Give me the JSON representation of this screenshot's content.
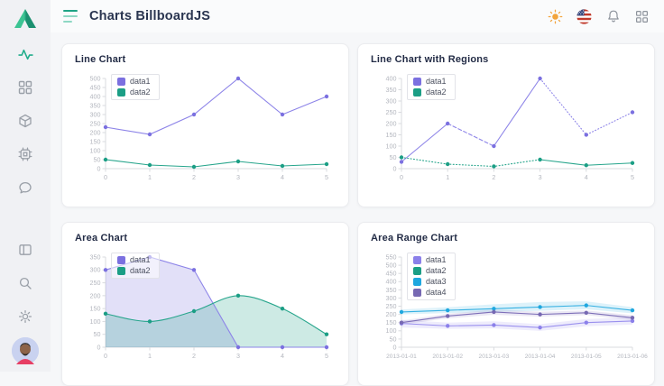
{
  "header": {
    "title": "Charts BillboardJS",
    "icons": [
      "menu-hamburger-icon",
      "theme-sun-icon",
      "language-flag-us-icon",
      "notifications-bell-icon",
      "apps-grid-icon"
    ]
  },
  "sidebar": {
    "logo": "triangle-logo",
    "nav_icons": [
      "activity-icon",
      "grid-icon",
      "cube-icon",
      "cpu-icon",
      "chat-icon"
    ],
    "bottom_icons": [
      "layout-icon",
      "search-icon",
      "settings-gear-icon"
    ],
    "avatar": "user-avatar"
  },
  "colors": {
    "accent_teal": "#22ad8b",
    "series_purple": "#7b70e0",
    "series_green": "#1b9e85",
    "series_blue": "#1ea7df",
    "series_dark_purple": "#7668b2",
    "sun_yellow": "#f2a43c",
    "icon_gray": "#9aa0a8",
    "title_navy": "#2a3550"
  },
  "chart_data": [
    {
      "type": "line",
      "title": "Line Chart",
      "x": [
        0,
        1,
        2,
        3,
        4,
        5
      ],
      "ylim": [
        0,
        500
      ],
      "ytick_step": 50,
      "legend_position": "inset-top-left",
      "grid": false,
      "series": [
        {
          "name": "data1",
          "color": "#7b70e0",
          "line_color": "#8d84e8",
          "type": "line",
          "values": [
            230,
            190,
            300,
            500,
            300,
            400
          ]
        },
        {
          "name": "data2",
          "color": "#1b9e85",
          "line_color": "#27a58c",
          "type": "line",
          "values": [
            50,
            20,
            10,
            40,
            15,
            25
          ]
        }
      ]
    },
    {
      "type": "line",
      "title": "Line Chart with Regions",
      "x": [
        0,
        1,
        2,
        3,
        4,
        5
      ],
      "ylim": [
        0,
        400
      ],
      "ytick_step": 50,
      "legend_position": "inset-top-left",
      "grid": false,
      "series": [
        {
          "name": "data1",
          "color": "#7b70e0",
          "line_color": "#8d84e8",
          "type": "line",
          "values": [
            30,
            200,
            100,
            400,
            150,
            250
          ],
          "segments": [
            {
              "from": 0,
              "to": 1,
              "style": "solid"
            },
            {
              "from": 1,
              "to": 2,
              "style": "dashed"
            },
            {
              "from": 2,
              "to": 3,
              "style": "solid"
            },
            {
              "from": 3,
              "to": 5,
              "style": "dotted"
            }
          ]
        },
        {
          "name": "data2",
          "color": "#1b9e85",
          "line_color": "#27a58c",
          "type": "line",
          "values": [
            50,
            20,
            10,
            40,
            15,
            25
          ],
          "segments": [
            {
              "from": 0,
              "to": 3,
              "style": "dotted"
            },
            {
              "from": 3,
              "to": 5,
              "style": "solid"
            }
          ]
        }
      ]
    },
    {
      "type": "area",
      "title": "Area Chart",
      "x": [
        0,
        1,
        2,
        3,
        4,
        5
      ],
      "ylim": [
        0,
        350
      ],
      "ytick_step": 50,
      "legend_position": "inset-top-left",
      "grid": false,
      "series": [
        {
          "name": "data1",
          "color": "#7b70e0",
          "line_color": "#8d84e8",
          "type": "area",
          "values": [
            300,
            350,
            300,
            0,
            0,
            0
          ]
        },
        {
          "name": "data2",
          "color": "#1b9e85",
          "line_color": "#27a58c",
          "type": "area-spline",
          "values": [
            130,
            100,
            140,
            200,
            150,
            50
          ]
        }
      ]
    },
    {
      "type": "area-line-range",
      "title": "Area Range Chart",
      "x": [
        "2013-01-01",
        "2013-01-02",
        "2013-01-03",
        "2013-01-04",
        "2013-01-05",
        "2013-01-06"
      ],
      "ylim": [
        0,
        550
      ],
      "ytick_step": 50,
      "legend_position": "inset-top-left",
      "grid": false,
      "series": [
        {
          "name": "data1",
          "color": "#8b80ea",
          "line_color": "#9a90ee",
          "type": "area-line-range",
          "mid": [
            145,
            130,
            135,
            120,
            150,
            160
          ],
          "high": [
            168,
            150,
            158,
            140,
            172,
            182
          ],
          "low": [
            120,
            112,
            115,
            100,
            128,
            138
          ]
        },
        {
          "name": "data2",
          "color": "#1b9e85",
          "line_color": "#1b9e85",
          "type": "line",
          "hidden": true,
          "values": []
        },
        {
          "name": "data3",
          "color": "#1ea7df",
          "line_color": "#35b0e2",
          "type": "area-line-range",
          "mid": [
            215,
            225,
            235,
            245,
            255,
            225
          ],
          "high": [
            230,
            244,
            262,
            276,
            280,
            244
          ],
          "low": [
            200,
            208,
            215,
            222,
            232,
            206
          ]
        },
        {
          "name": "data4",
          "color": "#7668b2",
          "line_color": "#7d6fb8",
          "type": "area-line-range",
          "mid": [
            150,
            190,
            215,
            200,
            210,
            180
          ],
          "high": [
            162,
            204,
            230,
            216,
            224,
            195
          ],
          "low": [
            138,
            176,
            198,
            186,
            196,
            165
          ]
        }
      ]
    }
  ]
}
